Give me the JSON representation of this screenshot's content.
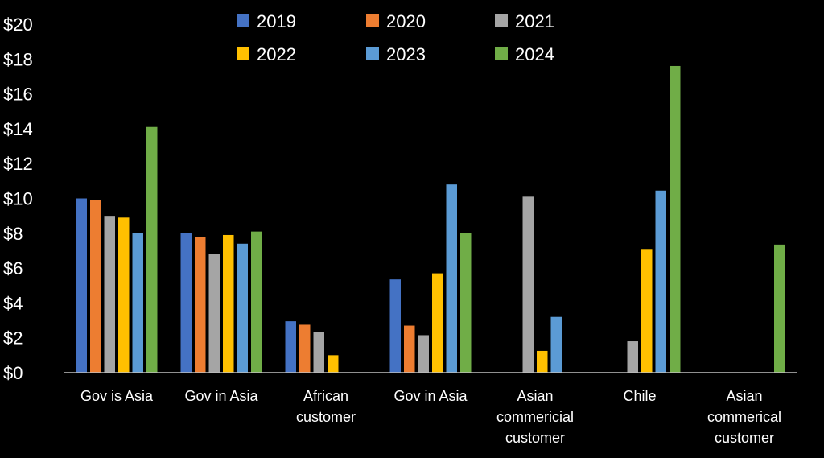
{
  "chart_data": {
    "type": "bar",
    "title": "",
    "xlabel": "",
    "ylabel": "",
    "y_tick_prefix": "$",
    "ylim": [
      0,
      20
    ],
    "y_ticks": [
      0,
      2,
      4,
      6,
      8,
      10,
      12,
      14,
      16,
      18,
      20
    ],
    "y_tick_labels": [
      "$0",
      "$2",
      "$4",
      "$6",
      "$8",
      "$10",
      "$12",
      "$14",
      "$16",
      "$18",
      "$20"
    ],
    "grid": false,
    "legend_position": "top",
    "categories": [
      [
        "Gov is Asia"
      ],
      [
        "Gov in Asia"
      ],
      [
        "African",
        "customer"
      ],
      [
        "Gov in Asia"
      ],
      [
        "Asian",
        "commericial",
        "customer"
      ],
      [
        "Chile"
      ],
      [
        "Asian",
        "commerical",
        "customer"
      ]
    ],
    "series": [
      {
        "name": "2019",
        "color": "#4472C4",
        "values": [
          10.0,
          8.0,
          2.95,
          5.35,
          null,
          null,
          null
        ]
      },
      {
        "name": "2020",
        "color": "#ED7D31",
        "values": [
          9.9,
          7.8,
          2.75,
          2.7,
          null,
          null,
          null
        ]
      },
      {
        "name": "2021",
        "color": "#A5A5A5",
        "values": [
          9.0,
          6.8,
          2.35,
          2.15,
          10.1,
          1.8,
          null
        ]
      },
      {
        "name": "2022",
        "color": "#FFC000",
        "values": [
          8.9,
          7.9,
          1.0,
          5.7,
          1.25,
          7.1,
          null
        ]
      },
      {
        "name": "2023",
        "color": "#5B9BD5",
        "values": [
          8.0,
          7.4,
          null,
          10.8,
          3.2,
          10.45,
          null
        ]
      },
      {
        "name": "2024",
        "color": "#70AD47",
        "values": [
          14.1,
          8.1,
          null,
          8.0,
          null,
          17.6,
          7.35
        ]
      }
    ]
  }
}
